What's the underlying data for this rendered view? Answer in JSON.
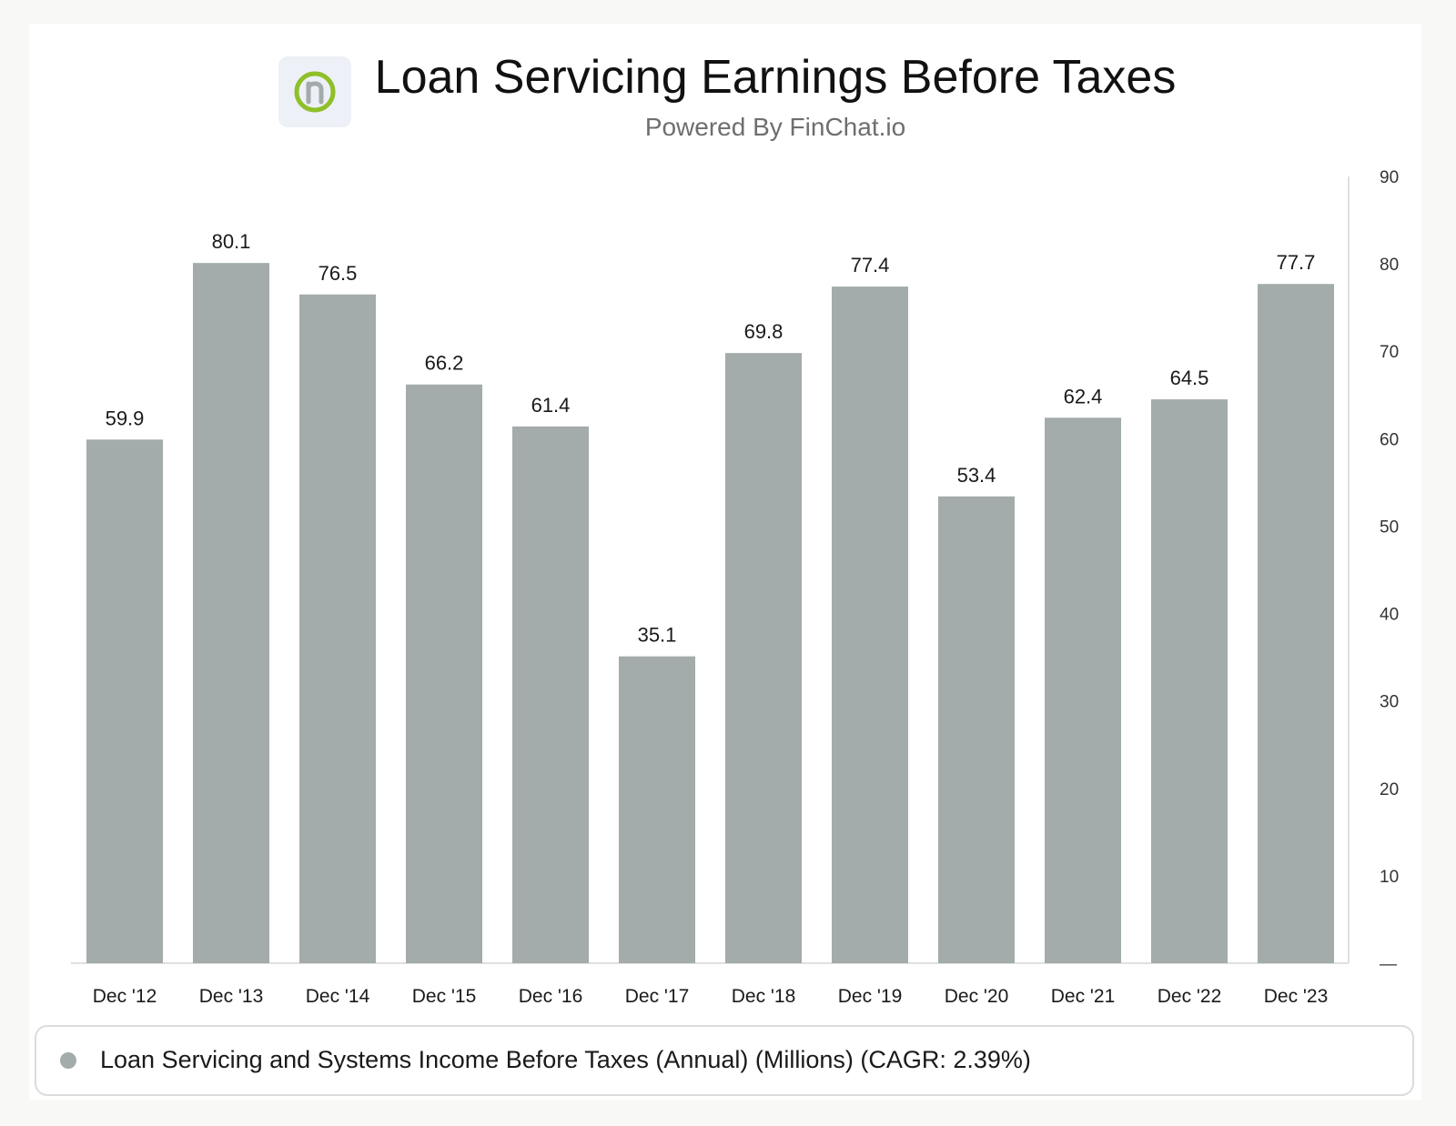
{
  "header": {
    "title": "Loan Servicing Earnings Before Taxes",
    "subtitle": "Powered By FinChat.io",
    "logo_icon": "finchat-n-logo-icon"
  },
  "colors": {
    "bar": "#a3abab",
    "logo_ring": "#8fbf2a",
    "axis": "#e0e0e0"
  },
  "legend": {
    "label": "Loan Servicing and Systems Income Before Taxes (Annual) (Millions) (CAGR: 2.39%)"
  },
  "chart_data": {
    "type": "bar",
    "title": "Loan Servicing Earnings Before Taxes",
    "categories": [
      "Dec '12",
      "Dec '13",
      "Dec '14",
      "Dec '15",
      "Dec '16",
      "Dec '17",
      "Dec '18",
      "Dec '19",
      "Dec '20",
      "Dec '21",
      "Dec '22",
      "Dec '23"
    ],
    "series": [
      {
        "name": "Loan Servicing and Systems Income Before Taxes (Annual) (Millions) (CAGR: 2.39%)",
        "values": [
          59.9,
          80.1,
          76.5,
          66.2,
          61.4,
          35.1,
          69.8,
          77.4,
          53.4,
          62.4,
          64.5,
          77.7
        ]
      }
    ],
    "ylim": [
      0,
      90
    ],
    "yticks": [
      0,
      10,
      20,
      30,
      40,
      50,
      60,
      70,
      80,
      90
    ],
    "ytick_labels": [
      "—",
      "10",
      "20",
      "30",
      "40",
      "50",
      "60",
      "70",
      "80",
      "90"
    ],
    "y_axis_position": "right",
    "grid": false,
    "legend_position": "bottom"
  }
}
